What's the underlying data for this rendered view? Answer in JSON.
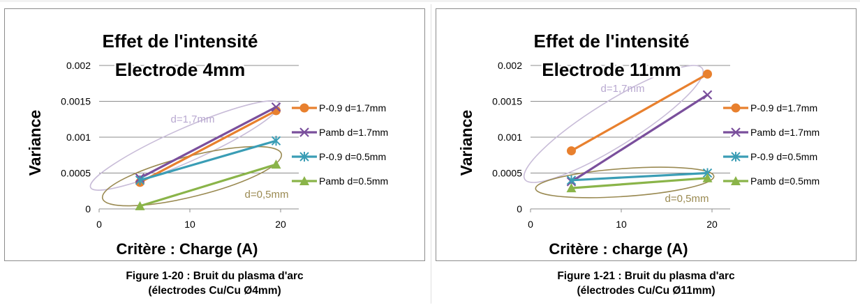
{
  "figures": [
    {
      "caption_line1": "Figure 1-20 : Bruit du plasma d'arc",
      "caption_line2": "(électrodes Cu/Cu Ø4mm)",
      "group_labels": {
        "upper": "d=1,7mm",
        "lower": "d=0,5mm"
      },
      "chart_data": {
        "type": "line",
        "title": [
          "Effet de l'intensité",
          "Electrode 4mm"
        ],
        "xlabel": "Critère : Charge (A)",
        "ylabel": "Variance",
        "xlim": [
          0,
          22
        ],
        "ylim": [
          0,
          0.002
        ],
        "x_ticks": [
          0,
          10,
          20
        ],
        "y_ticks": [
          "0",
          "0.0005",
          "0.001",
          "0.0015",
          "0.002"
        ],
        "grid": "horizontal",
        "legend_position": "right",
        "series": [
          {
            "name": "P-0.9 d=1.7mm",
            "color": "#e8802e",
            "marker": "circle",
            "x": [
              4.5,
              19.5
            ],
            "y": [
              0.00037,
              0.00137
            ]
          },
          {
            "name": "Pamb d=1.7mm",
            "color": "#7a4f9c",
            "marker": "x",
            "x": [
              4.5,
              19.5
            ],
            "y": [
              0.00043,
              0.00142
            ]
          },
          {
            "name": "P-0.9 d=0.5mm",
            "color": "#3a9db5",
            "marker": "star",
            "x": [
              4.5,
              19.5
            ],
            "y": [
              0.0004,
              0.00095
            ]
          },
          {
            "name": "Pamb d=0.5mm",
            "color": "#8ab449",
            "marker": "triangle",
            "x": [
              4.5,
              19.5
            ],
            "y": [
              4e-05,
              0.00062
            ]
          }
        ]
      }
    },
    {
      "caption_line1": "Figure 1-21 : Bruit du plasma d'arc",
      "caption_line2": "(électrodes Cu/Cu Ø11mm)",
      "group_labels": {
        "upper": "d=1,7mm",
        "lower": "d=0,5mm"
      },
      "chart_data": {
        "type": "line",
        "title": [
          "Effet de l'intensité",
          "Electrode 11mm"
        ],
        "xlabel": "Critère : charge (A)",
        "ylabel": "Variance",
        "xlim": [
          0,
          22
        ],
        "ylim": [
          0,
          0.002
        ],
        "x_ticks": [
          0,
          10,
          20
        ],
        "y_ticks": [
          "0",
          "0.0005",
          "0.001",
          "0.0015",
          "0.002"
        ],
        "grid": "horizontal",
        "legend_position": "right",
        "series": [
          {
            "name": "P-0.9 d=1.7mm",
            "color": "#e8802e",
            "marker": "circle",
            "x": [
              4.5,
              19.5
            ],
            "y": [
              0.00081,
              0.00188
            ]
          },
          {
            "name": "Pamb d=1.7mm",
            "color": "#7a4f9c",
            "marker": "x",
            "x": [
              4.5,
              19.5
            ],
            "y": [
              0.00038,
              0.00159
            ]
          },
          {
            "name": "P-0.9 d=0.5mm",
            "color": "#3a9db5",
            "marker": "star",
            "x": [
              4.5,
              19.5
            ],
            "y": [
              0.0004,
              0.0005
            ]
          },
          {
            "name": "Pamb d=0.5mm",
            "color": "#8ab449",
            "marker": "triangle",
            "x": [
              4.5,
              19.5
            ],
            "y": [
              0.00029,
              0.00043
            ]
          }
        ]
      }
    }
  ]
}
